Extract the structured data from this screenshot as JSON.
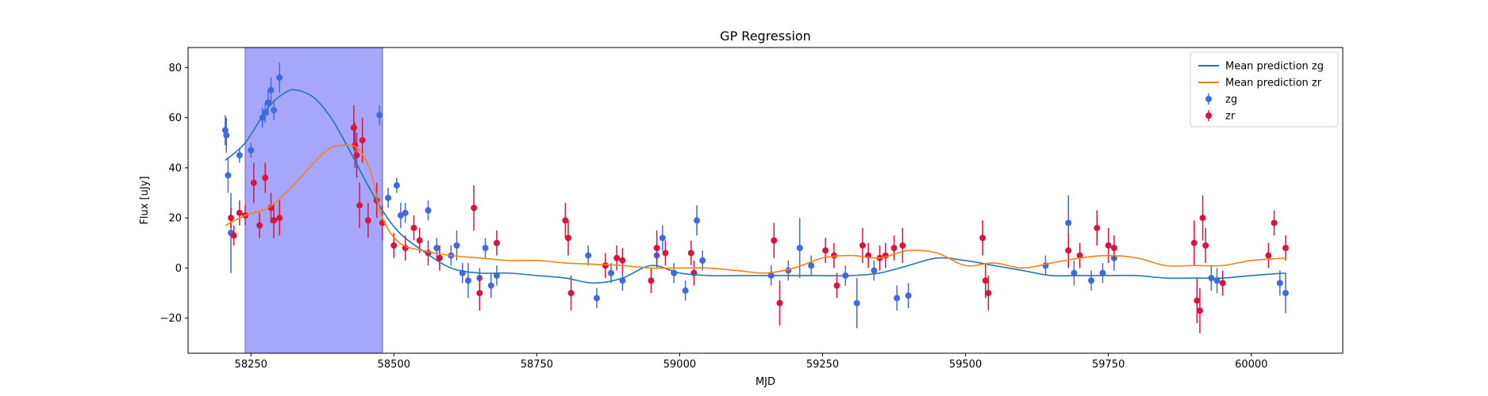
{
  "chart_data": {
    "type": "scatter",
    "title": "GP Regression",
    "xlabel": "MJD",
    "ylabel": "Flux [uJy]",
    "xlim": [
      58140,
      60160
    ],
    "ylim": [
      -34,
      88
    ],
    "xticks": [
      58250,
      58500,
      58750,
      59000,
      59250,
      59500,
      59750,
      60000
    ],
    "xtick_labels": [
      "58250",
      "58500",
      "58750",
      "59000",
      "59250",
      "59500",
      "59750",
      "60000"
    ],
    "yticks": [
      -20,
      0,
      20,
      40,
      60,
      80
    ],
    "ytick_labels": [
      "−20",
      "0",
      "20",
      "40",
      "60",
      "80"
    ],
    "grid": false,
    "legend_position": "top-right",
    "shaded_region": {
      "x_start": 58240,
      "x_end": 58480,
      "color": "#a6a6fb"
    },
    "colors": {
      "zg_line": "#1f77b4",
      "zr_line": "#ff7f0e",
      "zg_points": "#4169e1",
      "zr_points": "#dc143c"
    },
    "legend": [
      {
        "label": "Mean prediction zg",
        "kind": "line",
        "color": "#1f77b4"
      },
      {
        "label": "Mean prediction zr",
        "kind": "line",
        "color": "#ff7f0e"
      },
      {
        "label": "zg",
        "kind": "errorbar",
        "color": "#4169e1"
      },
      {
        "label": "zr",
        "kind": "errorbar",
        "color": "#dc143c"
      }
    ],
    "series": [
      {
        "name": "Mean prediction zg",
        "kind": "line",
        "color": "#1f77b4",
        "x": [
          58205,
          58240,
          58280,
          58310,
          58330,
          58360,
          58390,
          58420,
          58450,
          58480,
          58510,
          58550,
          58600,
          58650,
          58700,
          58750,
          58800,
          58850,
          58900,
          58950,
          59000,
          59050,
          59100,
          59150,
          59200,
          59250,
          59300,
          59350,
          59400,
          59450,
          59500,
          59550,
          59600,
          59650,
          59700,
          59750,
          59800,
          59850,
          59900,
          59950,
          60000,
          60060
        ],
        "y": [
          43,
          50,
          64,
          70,
          71,
          68,
          60,
          48,
          35,
          23,
          14,
          7,
          0,
          -2,
          -2,
          -3,
          -4,
          -6,
          -4,
          1,
          -2,
          -3,
          -3,
          -3,
          -3,
          -3,
          -3,
          -2,
          1,
          4,
          3,
          1,
          -1,
          -3,
          -3,
          -3,
          -3,
          -4,
          -4,
          -4,
          -3,
          -2
        ]
      },
      {
        "name": "Mean prediction zr",
        "kind": "line",
        "color": "#ff7f0e",
        "x": [
          58205,
          58240,
          58280,
          58320,
          58360,
          58390,
          58420,
          58440,
          58460,
          58480,
          58510,
          58550,
          58600,
          58650,
          58700,
          58750,
          58800,
          58850,
          58900,
          58950,
          59000,
          59050,
          59100,
          59150,
          59200,
          59250,
          59300,
          59350,
          59400,
          59450,
          59500,
          59550,
          59600,
          59650,
          59700,
          59750,
          59800,
          59850,
          59900,
          59950,
          60000,
          60060
        ],
        "y": [
          17,
          21,
          24,
          32,
          42,
          48,
          49,
          47,
          38,
          20,
          10,
          7,
          5,
          4,
          3,
          3,
          2,
          1.5,
          1,
          0,
          0,
          0,
          -1,
          -2,
          0,
          4,
          5,
          4,
          7,
          6,
          1,
          2,
          0,
          2,
          4,
          5,
          4,
          1,
          1,
          1,
          3,
          4
        ]
      },
      {
        "name": "zg",
        "kind": "errorbar",
        "color": "#4169e1",
        "x": [
          58205,
          58207,
          58210,
          58215,
          58230,
          58250,
          58270,
          58275,
          58280,
          58285,
          58290,
          58300,
          58475,
          58490,
          58505,
          58512,
          58520,
          58560,
          58575,
          58600,
          58610,
          58620,
          58630,
          58650,
          58660,
          58670,
          58680,
          58840,
          58855,
          58880,
          58900,
          58960,
          58970,
          58990,
          59010,
          59030,
          59040,
          59160,
          59190,
          59210,
          59230,
          59290,
          59310,
          59340,
          59380,
          59400,
          59640,
          59680,
          59690,
          59720,
          59740,
          59760,
          59930,
          59940,
          60050,
          60060
        ],
        "y": [
          55,
          53,
          37,
          14,
          45,
          47,
          60,
          62,
          66,
          71,
          63,
          76,
          61,
          28,
          33,
          21,
          22,
          23,
          8,
          5,
          9,
          -2,
          -5,
          -4,
          8,
          -7,
          -3,
          5,
          -12,
          -2,
          -5,
          5,
          12,
          -2,
          -9,
          19,
          3,
          -3,
          -1,
          8,
          1,
          -3,
          -14,
          -1,
          -12,
          -11,
          1,
          18,
          -2,
          -5,
          -2,
          4,
          -4,
          -5,
          -6,
          -10
        ],
        "yerr": [
          6,
          7,
          7,
          16,
          3,
          3,
          4,
          4,
          5,
          5,
          4,
          6,
          4,
          4,
          3,
          5,
          4,
          4,
          4,
          4,
          6,
          4,
          7,
          4,
          4,
          5,
          4,
          4,
          4,
          4,
          4,
          5,
          5,
          4,
          4,
          6,
          4,
          4,
          4,
          12,
          4,
          4,
          10,
          4,
          5,
          5,
          4,
          11,
          5,
          4,
          4,
          5,
          5,
          5,
          5,
          8
        ]
      },
      {
        "name": "zr",
        "kind": "errorbar",
        "color": "#dc143c",
        "x": [
          58215,
          58220,
          58230,
          58240,
          58255,
          58265,
          58275,
          58285,
          58290,
          58300,
          58430,
          58432,
          58435,
          58440,
          58445,
          58455,
          58470,
          58480,
          58500,
          58520,
          58535,
          58545,
          58560,
          58580,
          58640,
          58650,
          58680,
          58800,
          58805,
          58810,
          58870,
          58890,
          58900,
          58950,
          58960,
          58975,
          59020,
          59025,
          59165,
          59175,
          59255,
          59270,
          59275,
          59320,
          59330,
          59350,
          59360,
          59375,
          59390,
          59530,
          59535,
          59540,
          59680,
          59700,
          59730,
          59750,
          59760,
          59900,
          59905,
          59910,
          59915,
          59920,
          59950,
          60030,
          60040,
          60060
        ],
        "y": [
          20,
          13,
          22,
          21,
          34,
          17,
          36,
          24,
          19,
          20,
          56,
          49,
          45,
          25,
          51,
          19,
          27,
          18,
          9,
          8,
          16,
          11,
          6,
          4,
          24,
          -10,
          10,
          19,
          12,
          -10,
          1,
          4,
          3,
          -5,
          8,
          6,
          6,
          -2,
          11,
          -14,
          7,
          5,
          -7,
          9,
          5,
          4,
          5,
          8,
          9,
          12,
          -5,
          -10,
          7,
          5,
          16,
          9,
          8,
          10,
          -13,
          -17,
          20,
          9,
          -6,
          5,
          18,
          8
        ],
        "yerr": [
          4,
          4,
          5,
          4,
          8,
          5,
          6,
          6,
          7,
          7,
          9,
          9,
          9,
          9,
          9,
          7,
          7,
          7,
          5,
          5,
          5,
          5,
          5,
          5,
          9,
          7,
          5,
          7,
          7,
          7,
          5,
          5,
          5,
          5,
          7,
          5,
          5,
          5,
          7,
          9,
          5,
          5,
          5,
          7,
          5,
          5,
          5,
          5,
          7,
          7,
          7,
          7,
          7,
          5,
          7,
          7,
          5,
          9,
          9,
          9,
          9,
          7,
          5,
          5,
          5,
          5
        ]
      }
    ]
  }
}
